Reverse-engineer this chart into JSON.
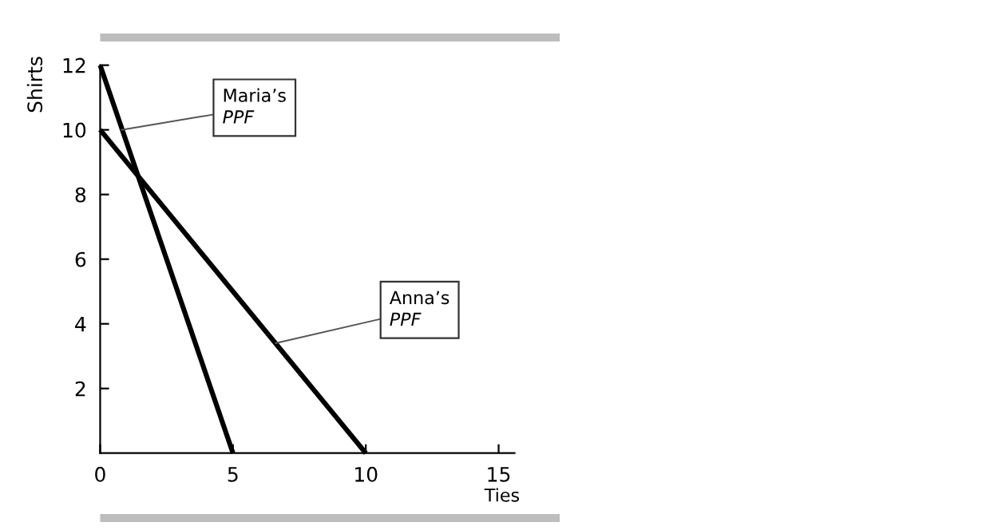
{
  "chart_data": {
    "type": "line",
    "xlabel": "Ties",
    "ylabel": "Shirts",
    "series": [
      {
        "color": "#000000",
        "x": [
          0,
          5
        ],
        "values": [
          12,
          0
        ]
      },
      {
        "color": "#000000",
        "x": [
          0,
          10
        ],
        "values": [
          10,
          0
        ]
      }
    ],
    "xlim": [
      0,
      15.6
    ],
    "xticks": [
      0,
      5,
      10,
      15
    ],
    "ylim": [
      0,
      12
    ],
    "yticks": [
      2,
      4,
      6,
      8,
      10,
      12
    ],
    "grid": false,
    "legend": false,
    "marker": "none",
    "line_style": "solid",
    "annotations": [
      {
        "text": "Maria’s\nPPF",
        "x": 0.8,
        "y": 10
      },
      {
        "text": "Anna’s\nPPF",
        "x": 6.6,
        "y": 3.4
      }
    ]
  }
}
